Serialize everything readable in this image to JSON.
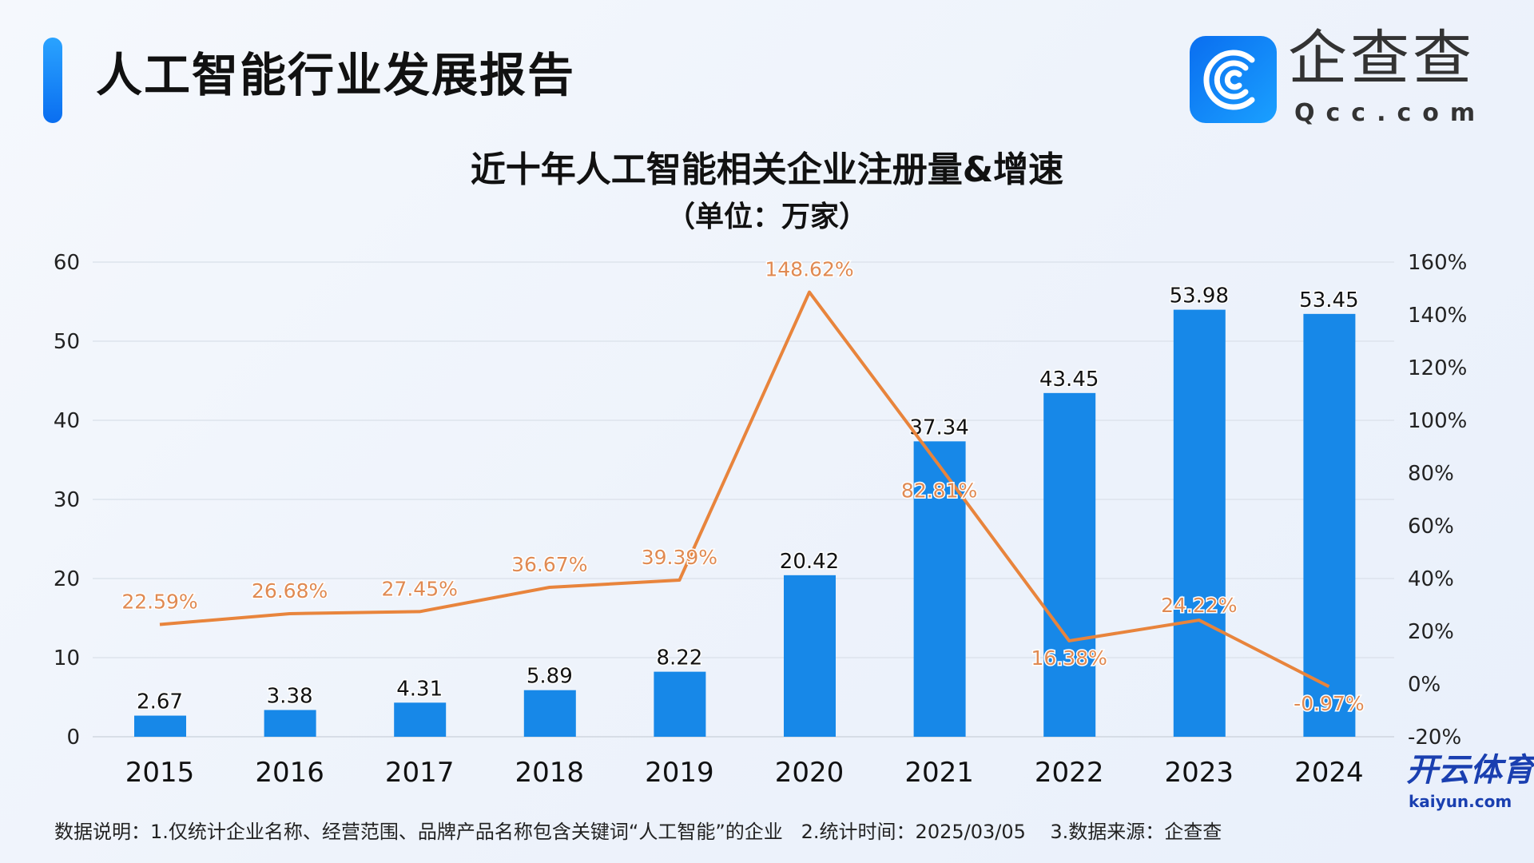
{
  "header": {
    "title": "人工智能行业发展报告",
    "logo_text": "企查查",
    "logo_sub": "Qcc.com"
  },
  "chart_data": {
    "type": "bar+line",
    "title": "近十年人工智能相关企业注册量&增速",
    "subtitle": "（单位：万家）",
    "categories": [
      "2015",
      "2016",
      "2017",
      "2018",
      "2019",
      "2020",
      "2021",
      "2022",
      "2023",
      "2024"
    ],
    "series": [
      {
        "name": "注册量",
        "type": "bar",
        "axis": "left",
        "color": "#1788e8",
        "values": [
          2.67,
          3.38,
          4.31,
          5.89,
          8.22,
          20.42,
          37.34,
          43.45,
          53.98,
          53.45
        ]
      },
      {
        "name": "增速",
        "type": "line",
        "axis": "right",
        "color": "#e8843c",
        "values": [
          22.59,
          26.68,
          27.45,
          36.67,
          39.39,
          148.62,
          82.81,
          16.38,
          24.22,
          -0.97
        ]
      }
    ],
    "left_axis": {
      "ylim": [
        0,
        60
      ],
      "ticks": [
        "0",
        "10",
        "20",
        "30",
        "40",
        "50",
        "60"
      ]
    },
    "right_axis": {
      "ylim": [
        -20,
        160
      ],
      "ticks": [
        "-20%",
        "0%",
        "20%",
        "40%",
        "60%",
        "80%",
        "100%",
        "120%",
        "140%",
        "160%"
      ]
    },
    "grid": true
  },
  "footnote": "数据说明：1.仅统计企业名称、经营范围、品牌产品名称包含关键词“人工智能”的企业   2.统计时间：2025/03/05    3.数据来源：企查查",
  "watermark": {
    "text": "开云体育",
    "sub": "kaiyun.com"
  }
}
